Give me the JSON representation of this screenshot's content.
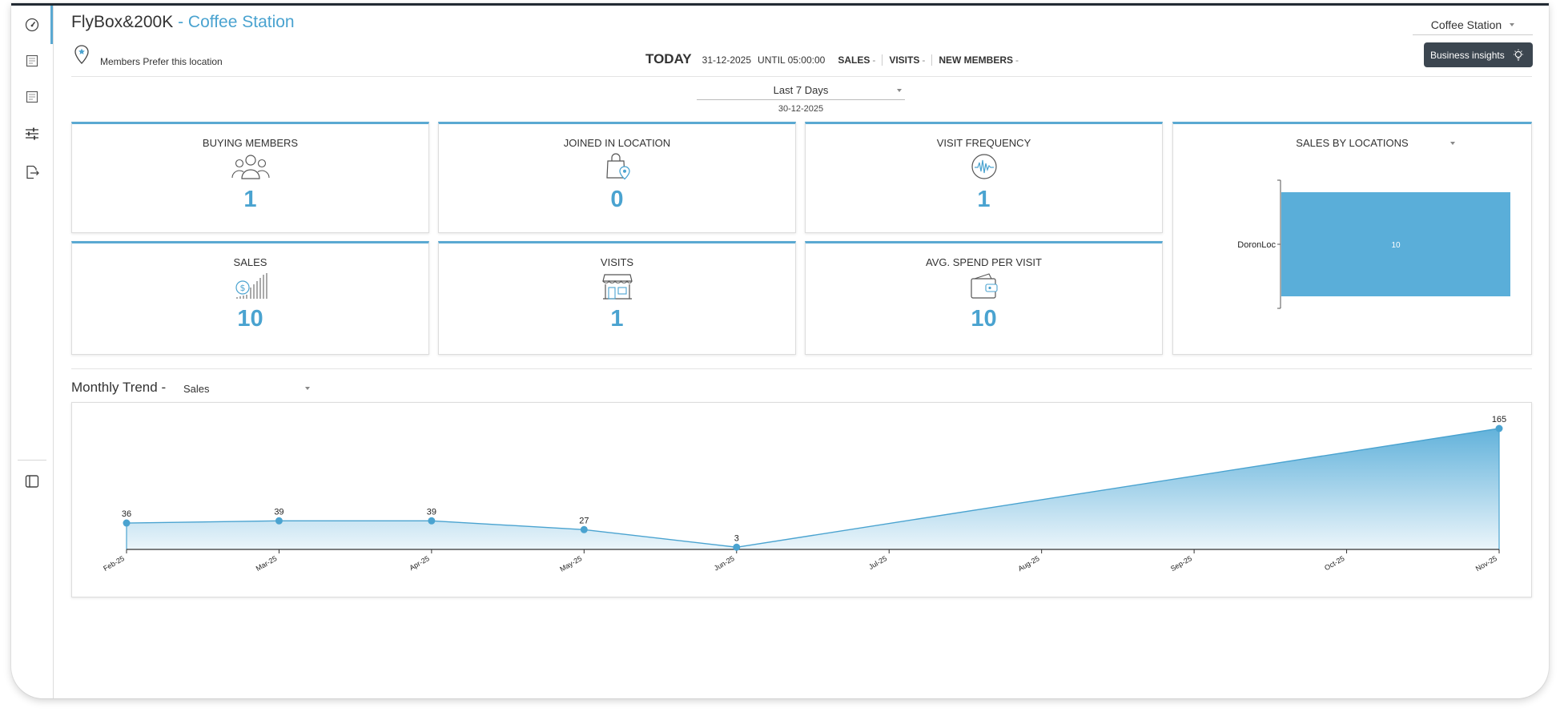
{
  "header": {
    "app_name": "FlyBox&200K",
    "separator": " - ",
    "location_name": "Coffee Station",
    "location_select": "Coffee Station",
    "insights_button": "Business insights",
    "prefer_text": "Members Prefer this location"
  },
  "today_bar": {
    "today": "TODAY",
    "date": "31-12-2025",
    "until": "UNTIL 05:00:00",
    "metrics": [
      {
        "label": "SALES",
        "value": "-"
      },
      {
        "label": "VISITS",
        "value": "-"
      },
      {
        "label": "NEW MEMBERS",
        "value": "-"
      }
    ]
  },
  "range": {
    "selected": "Last 7 Days",
    "date": "30-12-2025"
  },
  "kpis": [
    {
      "title": "BUYING MEMBERS",
      "value": "1",
      "icon": "members-icon"
    },
    {
      "title": "JOINED IN LOCATION",
      "value": "0",
      "icon": "bag-location-icon"
    },
    {
      "title": "VISIT FREQUENCY",
      "value": "1",
      "icon": "pulse-icon"
    },
    {
      "title": "SALES",
      "value": "10",
      "icon": "dollar-bars-icon"
    },
    {
      "title": "VISITS",
      "value": "1",
      "icon": "storefront-icon"
    },
    {
      "title": "AVG. SPEND PER VISIT",
      "value": "10",
      "icon": "wallet-icon"
    }
  ],
  "sales_by_locations": {
    "title": "SALES BY LOCATIONS",
    "chart_data": {
      "type": "bar",
      "orientation": "horizontal",
      "categories": [
        "DoronLoc"
      ],
      "values": [
        10
      ],
      "data_labels": [
        "10"
      ],
      "color": "#5aaed9"
    }
  },
  "monthly_trend": {
    "title": "Monthly Trend -",
    "metric_select": "Sales",
    "chart_data": {
      "type": "area",
      "categories": [
        "Feb-25",
        "Mar-25",
        "Apr-25",
        "May-25",
        "Jun-25",
        "Jul-25",
        "Aug-25",
        "Sep-25",
        "Oct-25",
        "Nov-25"
      ],
      "values": [
        36,
        39,
        39,
        27,
        3,
        null,
        null,
        null,
        null,
        165
      ],
      "data_labels": [
        "36",
        "39",
        "39",
        "27",
        "3",
        "",
        "",
        "",
        "",
        "165"
      ],
      "ylim": [
        0,
        165
      ],
      "color": "#5aaed9"
    }
  },
  "sidebar": {
    "items": [
      {
        "name": "dashboard",
        "icon": "gauge-icon"
      },
      {
        "name": "report-1",
        "icon": "report-icon"
      },
      {
        "name": "report-2",
        "icon": "report-icon"
      },
      {
        "name": "settings",
        "icon": "sliders-icon"
      },
      {
        "name": "logout",
        "icon": "logout-icon"
      },
      {
        "name": "toggle-panel",
        "icon": "panel-icon"
      }
    ]
  }
}
